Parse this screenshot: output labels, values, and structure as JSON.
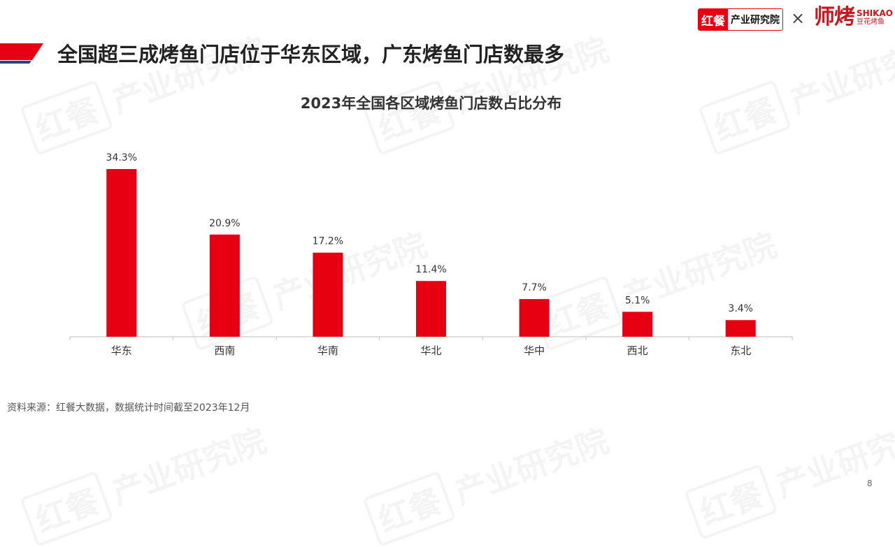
{
  "header": {
    "logo_left_box": "红餐",
    "logo_left_text": "产业研究院",
    "logo_sep": "×",
    "logo_right_cn": "师烤",
    "logo_right_en": "SHIKAO",
    "logo_right_sub": "豆花烤鱼"
  },
  "page_title": "全国超三成烤鱼门店位于华东区域，广东烤鱼门店数最多",
  "watermark": {
    "box": "红餐",
    "text": "产业研究院"
  },
  "colors": {
    "bar": "#e60012",
    "accent_red": "#e60012",
    "accent_blue": "#2b3f8f"
  },
  "chart_data": {
    "type": "bar",
    "title": "2023年全国各区域烤鱼门店数占比分布",
    "categories": [
      "华东",
      "西南",
      "华南",
      "华北",
      "华中",
      "西北",
      "东北"
    ],
    "values": [
      34.3,
      20.9,
      17.2,
      11.4,
      7.7,
      5.1,
      3.4
    ],
    "value_labels": [
      "34.3%",
      "20.9%",
      "17.2%",
      "11.4%",
      "7.7%",
      "5.1%",
      "3.4%"
    ],
    "unit": "%",
    "ylim": [
      0,
      34.3
    ],
    "grid": false,
    "legend": "none"
  },
  "footer": {
    "source": "资料来源：红餐大数据，数据统计时间截至2023年12月",
    "page_number": "8"
  }
}
